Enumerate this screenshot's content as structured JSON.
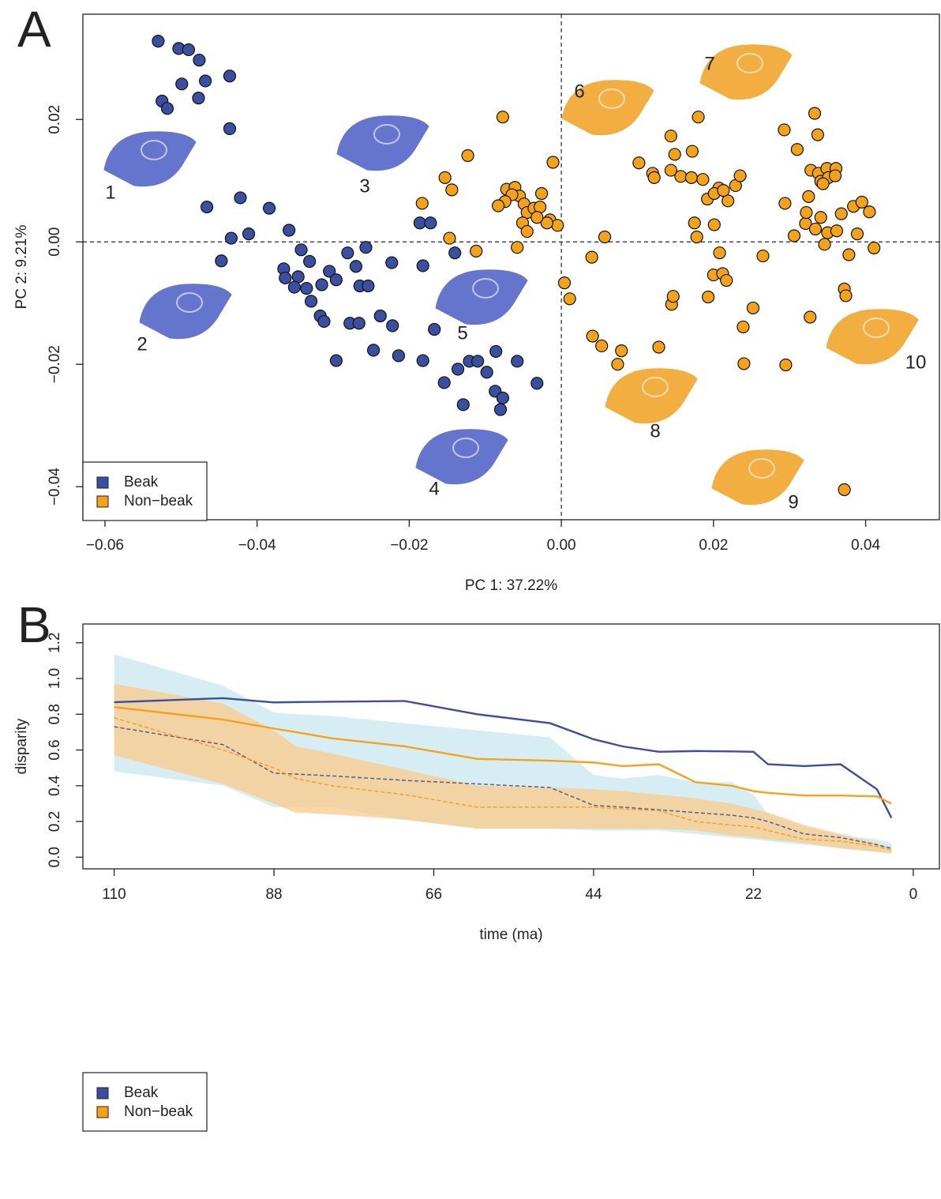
{
  "chart_data": [
    {
      "type": "scatter",
      "panel_label": "A",
      "xlabel": "PC 1: 37.22%",
      "ylabel": "PC 2: 9.21%",
      "xlim": [
        -0.0629,
        0.0497
      ],
      "ylim": [
        -0.0454,
        0.0372
      ],
      "xticks": [
        {
          "value": -0.06,
          "label": "−0.06"
        },
        {
          "value": -0.04,
          "label": "−0.04"
        },
        {
          "value": -0.02,
          "label": "−0.02"
        },
        {
          "value": 0,
          "label": "0.00"
        },
        {
          "value": 0.02,
          "label": "0.02"
        },
        {
          "value": 0.04,
          "label": "0.04"
        }
      ],
      "yticks": [
        {
          "value": -0.04,
          "label": "−0.04"
        },
        {
          "value": -0.02,
          "label": "−0.02"
        },
        {
          "value": 0,
          "label": "0.00"
        },
        {
          "value": 0.02,
          "label": "0.02"
        }
      ],
      "legend": "bottom-left",
      "annotations": [
        "1",
        "2",
        "3",
        "4",
        "5",
        "6",
        "7",
        "8",
        "9",
        "10"
      ],
      "series": [
        {
          "name": "Beak",
          "color": "#3a4fa0",
          "x": [
            -0.053,
            -0.0503,
            -0.049,
            -0.0476,
            -0.0468,
            -0.0499,
            -0.0436,
            -0.0477,
            -0.0525,
            -0.0518,
            -0.0436,
            -0.0466,
            -0.0422,
            -0.0384,
            -0.0411,
            -0.0434,
            -0.0447,
            -0.0358,
            -0.0342,
            -0.0331,
            -0.0365,
            -0.0346,
            -0.0363,
            -0.0351,
            -0.0335,
            -0.0329,
            -0.0315,
            -0.0305,
            -0.0296,
            -0.0281,
            -0.0257,
            -0.027,
            -0.0265,
            -0.0254,
            -0.0223,
            -0.0186,
            -0.0172,
            -0.014,
            -0.0182,
            -0.0317,
            -0.0312,
            -0.0278,
            -0.0266,
            -0.0296,
            -0.0238,
            -0.0222,
            -0.0247,
            -0.0214,
            -0.0167,
            -0.0182,
            -0.0154,
            -0.0129,
            -0.0136,
            -0.0121,
            -0.011,
            -0.0086,
            -0.0098,
            -0.0058,
            -0.0032,
            -0.0087,
            -0.0077,
            -0.008
          ],
          "y": [
            0.0328,
            0.0316,
            0.0314,
            0.0297,
            0.0263,
            0.0258,
            0.0271,
            0.0235,
            0.023,
            0.0218,
            0.0185,
            0.0057,
            0.0072,
            0.0055,
            0.0013,
            0.0006,
            -0.0031,
            0.0019,
            -0.0013,
            -0.0032,
            -0.0044,
            -0.0057,
            -0.0059,
            -0.0074,
            -0.0076,
            -0.0097,
            -0.007,
            -0.0048,
            -0.0062,
            -0.0018,
            -0.0009,
            -0.004,
            -0.0072,
            -0.0072,
            -0.0034,
            0.0031,
            0.0031,
            -0.0018,
            -0.0039,
            -0.0121,
            -0.013,
            -0.0133,
            -0.0133,
            -0.0194,
            -0.0121,
            -0.0137,
            -0.0177,
            -0.0186,
            -0.0143,
            -0.0194,
            -0.023,
            -0.0266,
            -0.0208,
            -0.0195,
            -0.0195,
            -0.0179,
            -0.0213,
            -0.0195,
            -0.0231,
            -0.0244,
            -0.0255,
            -0.0274
          ]
        },
        {
          "name": "Non−beak",
          "color": "#f5a21b",
          "x": [
            -0.0077,
            -0.0123,
            -0.0153,
            -0.0144,
            -0.0183,
            -0.0147,
            -0.0112,
            -0.0072,
            -0.0061,
            -0.0055,
            -0.0065,
            -0.0074,
            -0.0083,
            -0.0049,
            -0.0045,
            -0.0036,
            -0.0028,
            -0.0026,
            -0.0011,
            -0.0015,
            -0.0005,
            -0.0019,
            -0.0032,
            -0.0051,
            -0.0058,
            -0.0045,
            0.0004,
            0.0011,
            0.004,
            0.0057,
            0.0041,
            0.0053,
            0.0079,
            0.0074,
            0.0128,
            0.0145,
            0.0147,
            0.0102,
            0.012,
            0.0122,
            0.0144,
            0.0149,
            0.0144,
            0.0157,
            0.0172,
            0.018,
            0.0171,
            0.0186,
            0.0192,
            0.0178,
            0.0175,
            0.0201,
            0.0207,
            0.0208,
            0.02,
            0.0212,
            0.0217,
            0.0193,
            0.0201,
            0.0219,
            0.0229,
            0.0235,
            0.0213,
            0.0252,
            0.0239,
            0.024,
            0.0265,
            0.0293,
            0.031,
            0.0333,
            0.0337,
            0.0294,
            0.0306,
            0.0321,
            0.0328,
            0.0338,
            0.0349,
            0.0361,
            0.0341,
            0.0351,
            0.036,
            0.0344,
            0.0325,
            0.0322,
            0.0341,
            0.035,
            0.0334,
            0.0346,
            0.0362,
            0.0368,
            0.0378,
            0.0384,
            0.0395,
            0.0405,
            0.0389,
            0.0411,
            0.0372,
            0.0374,
            0.0327,
            0.0295,
            0.0372
          ],
          "y": [
            0.0204,
            0.0141,
            0.0105,
            0.0085,
            0.0063,
            0.0006,
            -0.0015,
            0.0086,
            0.0089,
            0.0075,
            0.0077,
            0.0066,
            0.0059,
            0.0062,
            0.0048,
            0.0055,
            0.0057,
            0.0079,
            0.013,
            0.0036,
            0.0027,
            0.0031,
            0.004,
            0.0031,
            -0.0009,
            0.0017,
            -0.0067,
            -0.0093,
            -0.0025,
            0.0008,
            -0.0154,
            -0.017,
            -0.0178,
            -0.02,
            -0.0172,
            -0.0102,
            -0.0089,
            0.0129,
            0.0112,
            0.0105,
            0.0173,
            0.0143,
            0.0117,
            0.0107,
            0.0148,
            0.0204,
            0.0105,
            0.0102,
            0.007,
            0.0008,
            0.0031,
            0.0028,
            0.0088,
            -0.0018,
            -0.0054,
            -0.0052,
            -0.0063,
            -0.009,
            0.0079,
            0.0067,
            0.0092,
            0.0108,
            0.0084,
            -0.0108,
            -0.0139,
            -0.0199,
            -0.0023,
            0.0183,
            0.0151,
            0.021,
            0.0175,
            0.0063,
            0.001,
            0.003,
            0.0117,
            0.0112,
            0.012,
            0.012,
            0.0099,
            0.0105,
            0.0108,
            0.0095,
            0.0074,
            0.0048,
            0.004,
            0.0015,
            0.0021,
            -0.0004,
            0.0018,
            0.0046,
            -0.0021,
            0.0058,
            0.0065,
            0.0049,
            0.0013,
            -0.001,
            -0.0077,
            -0.0088,
            -0.0123,
            -0.0201,
            -0.0405
          ]
        }
      ]
    },
    {
      "type": "line",
      "panel_label": "B",
      "xlabel": "time (ma)",
      "ylabel": "disparity",
      "xlim": [
        114.3,
        -3.6
      ],
      "ylim": [
        -0.065,
        1.305
      ],
      "xticks": [
        110,
        88,
        66,
        44,
        22,
        0
      ],
      "yticks": [
        {
          "value": 0,
          "label": "0.0"
        },
        {
          "value": 0.2,
          "label": "0.2"
        },
        {
          "value": 0.4,
          "label": "0.4"
        },
        {
          "value": 0.6,
          "label": "0.6"
        },
        {
          "value": 0.8,
          "label": "0.8"
        },
        {
          "value": 1.0,
          "label": "1.0"
        },
        {
          "value": 1.2,
          "label": "1.2"
        }
      ],
      "legend": "bottom-left",
      "x": [
        110,
        95,
        88,
        85,
        80,
        70,
        60,
        50,
        44,
        40,
        35,
        30,
        25,
        22,
        20,
        15,
        10,
        5,
        3
      ],
      "bands": [
        {
          "color": "#d6eef3",
          "upper": [
            1.135,
            0.96,
            0.81,
            0.8,
            0.79,
            0.75,
            0.71,
            0.67,
            0.46,
            0.44,
            0.46,
            0.42,
            0.42,
            0.35,
            0.24,
            0.17,
            0.12,
            0.1,
            0.08
          ],
          "lower": [
            0.48,
            0.4,
            0.28,
            0.28,
            0.28,
            0.21,
            0.16,
            0.16,
            0.15,
            0.15,
            0.15,
            0.13,
            0.11,
            0.1,
            0.09,
            0.07,
            0.05,
            0.03,
            0.02
          ]
        },
        {
          "color": "#f9c98a",
          "upper": [
            0.97,
            0.86,
            0.71,
            0.62,
            0.58,
            0.49,
            0.4,
            0.39,
            0.38,
            0.37,
            0.35,
            0.33,
            0.3,
            0.27,
            0.25,
            0.18,
            0.13,
            0.08,
            0.05
          ],
          "lower": [
            0.57,
            0.41,
            0.3,
            0.25,
            0.24,
            0.21,
            0.16,
            0.16,
            0.16,
            0.16,
            0.16,
            0.15,
            0.12,
            0.11,
            0.1,
            0.08,
            0.05,
            0.03,
            0.02
          ]
        }
      ],
      "series": [
        {
          "name": "Beak",
          "color": "#3a4fa0",
          "values": [
            0.867,
            0.89,
            0.866,
            0.868,
            0.87,
            0.874,
            0.8,
            0.75,
            0.66,
            0.62,
            0.59,
            0.594,
            0.592,
            0.59,
            0.52,
            0.51,
            0.52,
            0.38,
            0.22
          ]
        },
        {
          "name": "Non−beak",
          "color": "#f5a21b",
          "values": [
            0.84,
            0.77,
            0.72,
            0.7,
            0.665,
            0.62,
            0.55,
            0.54,
            0.53,
            0.51,
            0.52,
            0.42,
            0.4,
            0.37,
            0.36,
            0.345,
            0.345,
            0.34,
            0.3
          ]
        },
        {
          "color": "#5a5c8c",
          "dash": true,
          "values": [
            0.73,
            0.63,
            0.47,
            0.465,
            0.455,
            0.43,
            0.41,
            0.39,
            0.29,
            0.28,
            0.265,
            0.25,
            0.235,
            0.22,
            0.2,
            0.13,
            0.11,
            0.07,
            0.05
          ]
        },
        {
          "color": "#f5a21b",
          "dash": true,
          "values": [
            0.78,
            0.6,
            0.5,
            0.44,
            0.4,
            0.35,
            0.28,
            0.28,
            0.28,
            0.27,
            0.26,
            0.2,
            0.18,
            0.17,
            0.15,
            0.1,
            0.09,
            0.06,
            0.04
          ]
        }
      ]
    }
  ]
}
